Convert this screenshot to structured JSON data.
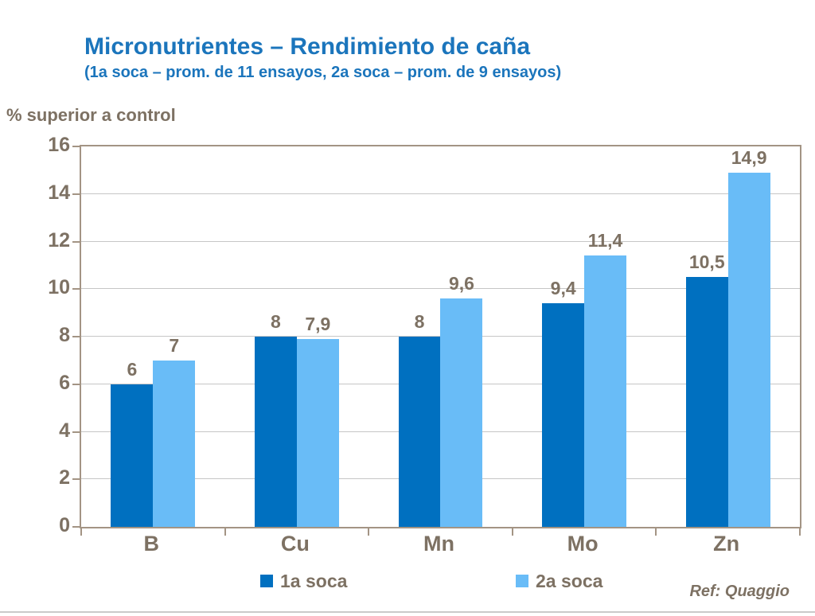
{
  "header": {
    "title": "Micronutrientes – Rendimiento de caña",
    "subtitle": "(1a soca – prom. de 11 ensayos, 2a soca – prom. de 9 ensayos)",
    "title_color": "#1b75bc"
  },
  "footer": {
    "ref": "Ref: Quaggio"
  },
  "chart_data": {
    "type": "bar",
    "title": "Micronutrientes – Rendimiento de caña",
    "subtitle": "(1a soca – prom. de 11 ensayos, 2a soca – prom. de 9 ensayos)",
    "ylabel": "% superior a control",
    "xlabel": "",
    "categories": [
      "B",
      "Cu",
      "Mn",
      "Mo",
      "Zn"
    ],
    "series": [
      {
        "name": "1a soca",
        "color": "#0070c0",
        "values": [
          6,
          8,
          8,
          9.4,
          10.5
        ],
        "labels": [
          "6",
          "8",
          "8",
          "9,4",
          "10,5"
        ]
      },
      {
        "name": "2a soca",
        "color": "#69bcf7",
        "values": [
          7,
          7.9,
          9.6,
          11.4,
          14.9
        ],
        "labels": [
          "7",
          "7,9",
          "9,6",
          "11,4",
          "14,9"
        ]
      }
    ],
    "ylim": [
      0,
      16
    ],
    "ytick_step": 2,
    "grid": true,
    "legend_position": "bottom",
    "decimal_separator": ",",
    "text_color": "#7d7163",
    "axis_color": "#a39484",
    "grid_color": "#c6c6c6"
  }
}
